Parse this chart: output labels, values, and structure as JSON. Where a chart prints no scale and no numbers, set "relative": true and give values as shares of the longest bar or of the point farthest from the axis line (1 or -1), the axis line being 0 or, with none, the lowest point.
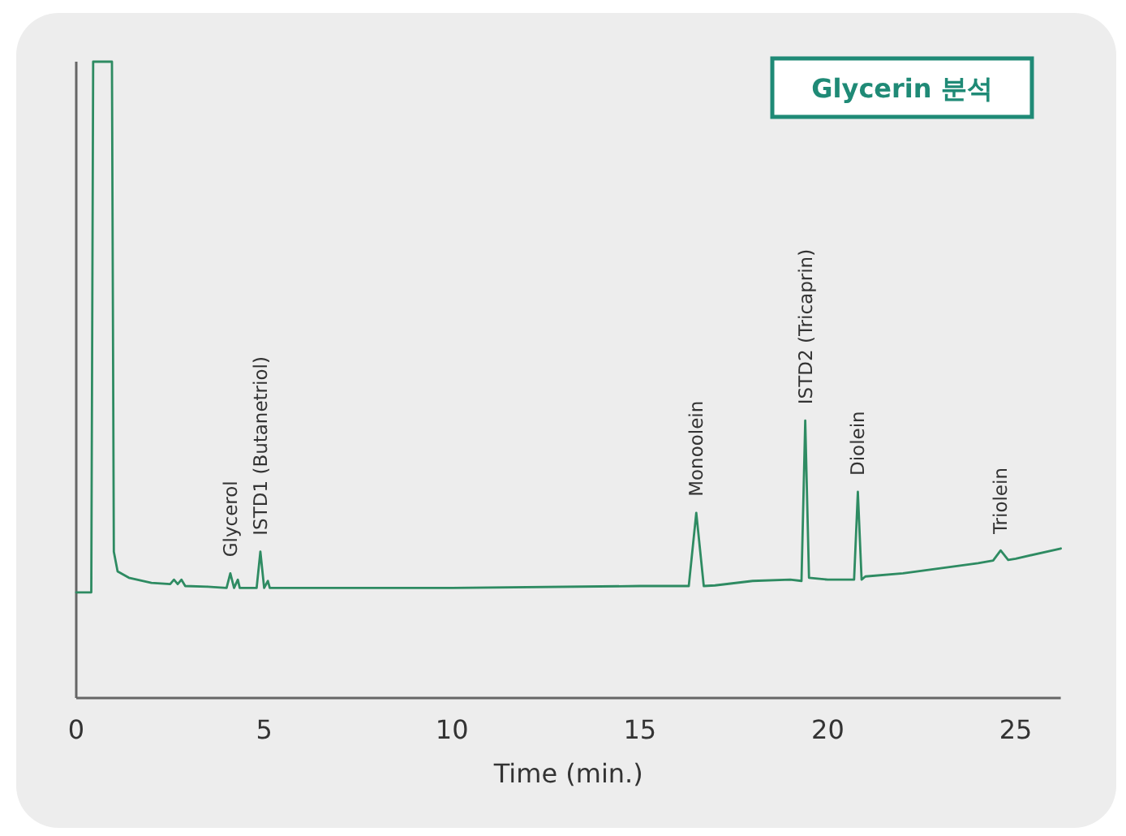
{
  "chart_data": {
    "type": "line",
    "title": "Glycerin 분석",
    "xlabel": "Time (min.)",
    "relative": true,
    "color": "#2e8b62",
    "xlim": [
      0,
      26.2
    ],
    "xticks": [
      0,
      5,
      10,
      15,
      20,
      25
    ],
    "x": [
      0,
      0.4,
      0.45,
      0.95,
      1.0,
      1.1,
      1.4,
      2,
      2.5,
      2.6,
      2.7,
      2.8,
      2.9,
      3.5,
      4.0,
      4.1,
      4.2,
      4.3,
      4.35,
      4.8,
      4.9,
      5.0,
      5.1,
      5.15,
      10,
      15,
      16.3,
      16.5,
      16.7,
      17,
      18,
      19,
      19.3,
      19.4,
      19.5,
      20,
      20.7,
      20.8,
      20.9,
      21,
      22,
      23,
      24,
      24.4,
      24.6,
      24.8,
      25,
      26.2
    ],
    "values": [
      0.166,
      0.166,
      1,
      1,
      0.23,
      0.199,
      0.189,
      0.181,
      0.179,
      0.186,
      0.179,
      0.186,
      0.176,
      0.175,
      0.173,
      0.196,
      0.173,
      0.186,
      0.173,
      0.173,
      0.23,
      0.173,
      0.184,
      0.173,
      0.173,
      0.176,
      0.176,
      0.291,
      0.176,
      0.177,
      0.184,
      0.186,
      0.184,
      0.436,
      0.189,
      0.186,
      0.186,
      0.324,
      0.186,
      0.191,
      0.196,
      0.204,
      0.212,
      0.216,
      0.232,
      0.217,
      0.219,
      0.235
    ],
    "annotations": [
      {
        "text": "Glycerol",
        "x": 4.1,
        "y": 0.196
      },
      {
        "text": "ISTD1 (Butanetriol)",
        "x": 4.9,
        "y": 0.23
      },
      {
        "text": "Monoolein",
        "x": 16.5,
        "y": 0.291
      },
      {
        "text": "ISTD2 (Tricaprin)",
        "x": 19.4,
        "y": 0.436
      },
      {
        "text": "Diolein",
        "x": 20.8,
        "y": 0.324
      },
      {
        "text": "Triolein",
        "x": 24.6,
        "y": 0.232
      }
    ]
  }
}
